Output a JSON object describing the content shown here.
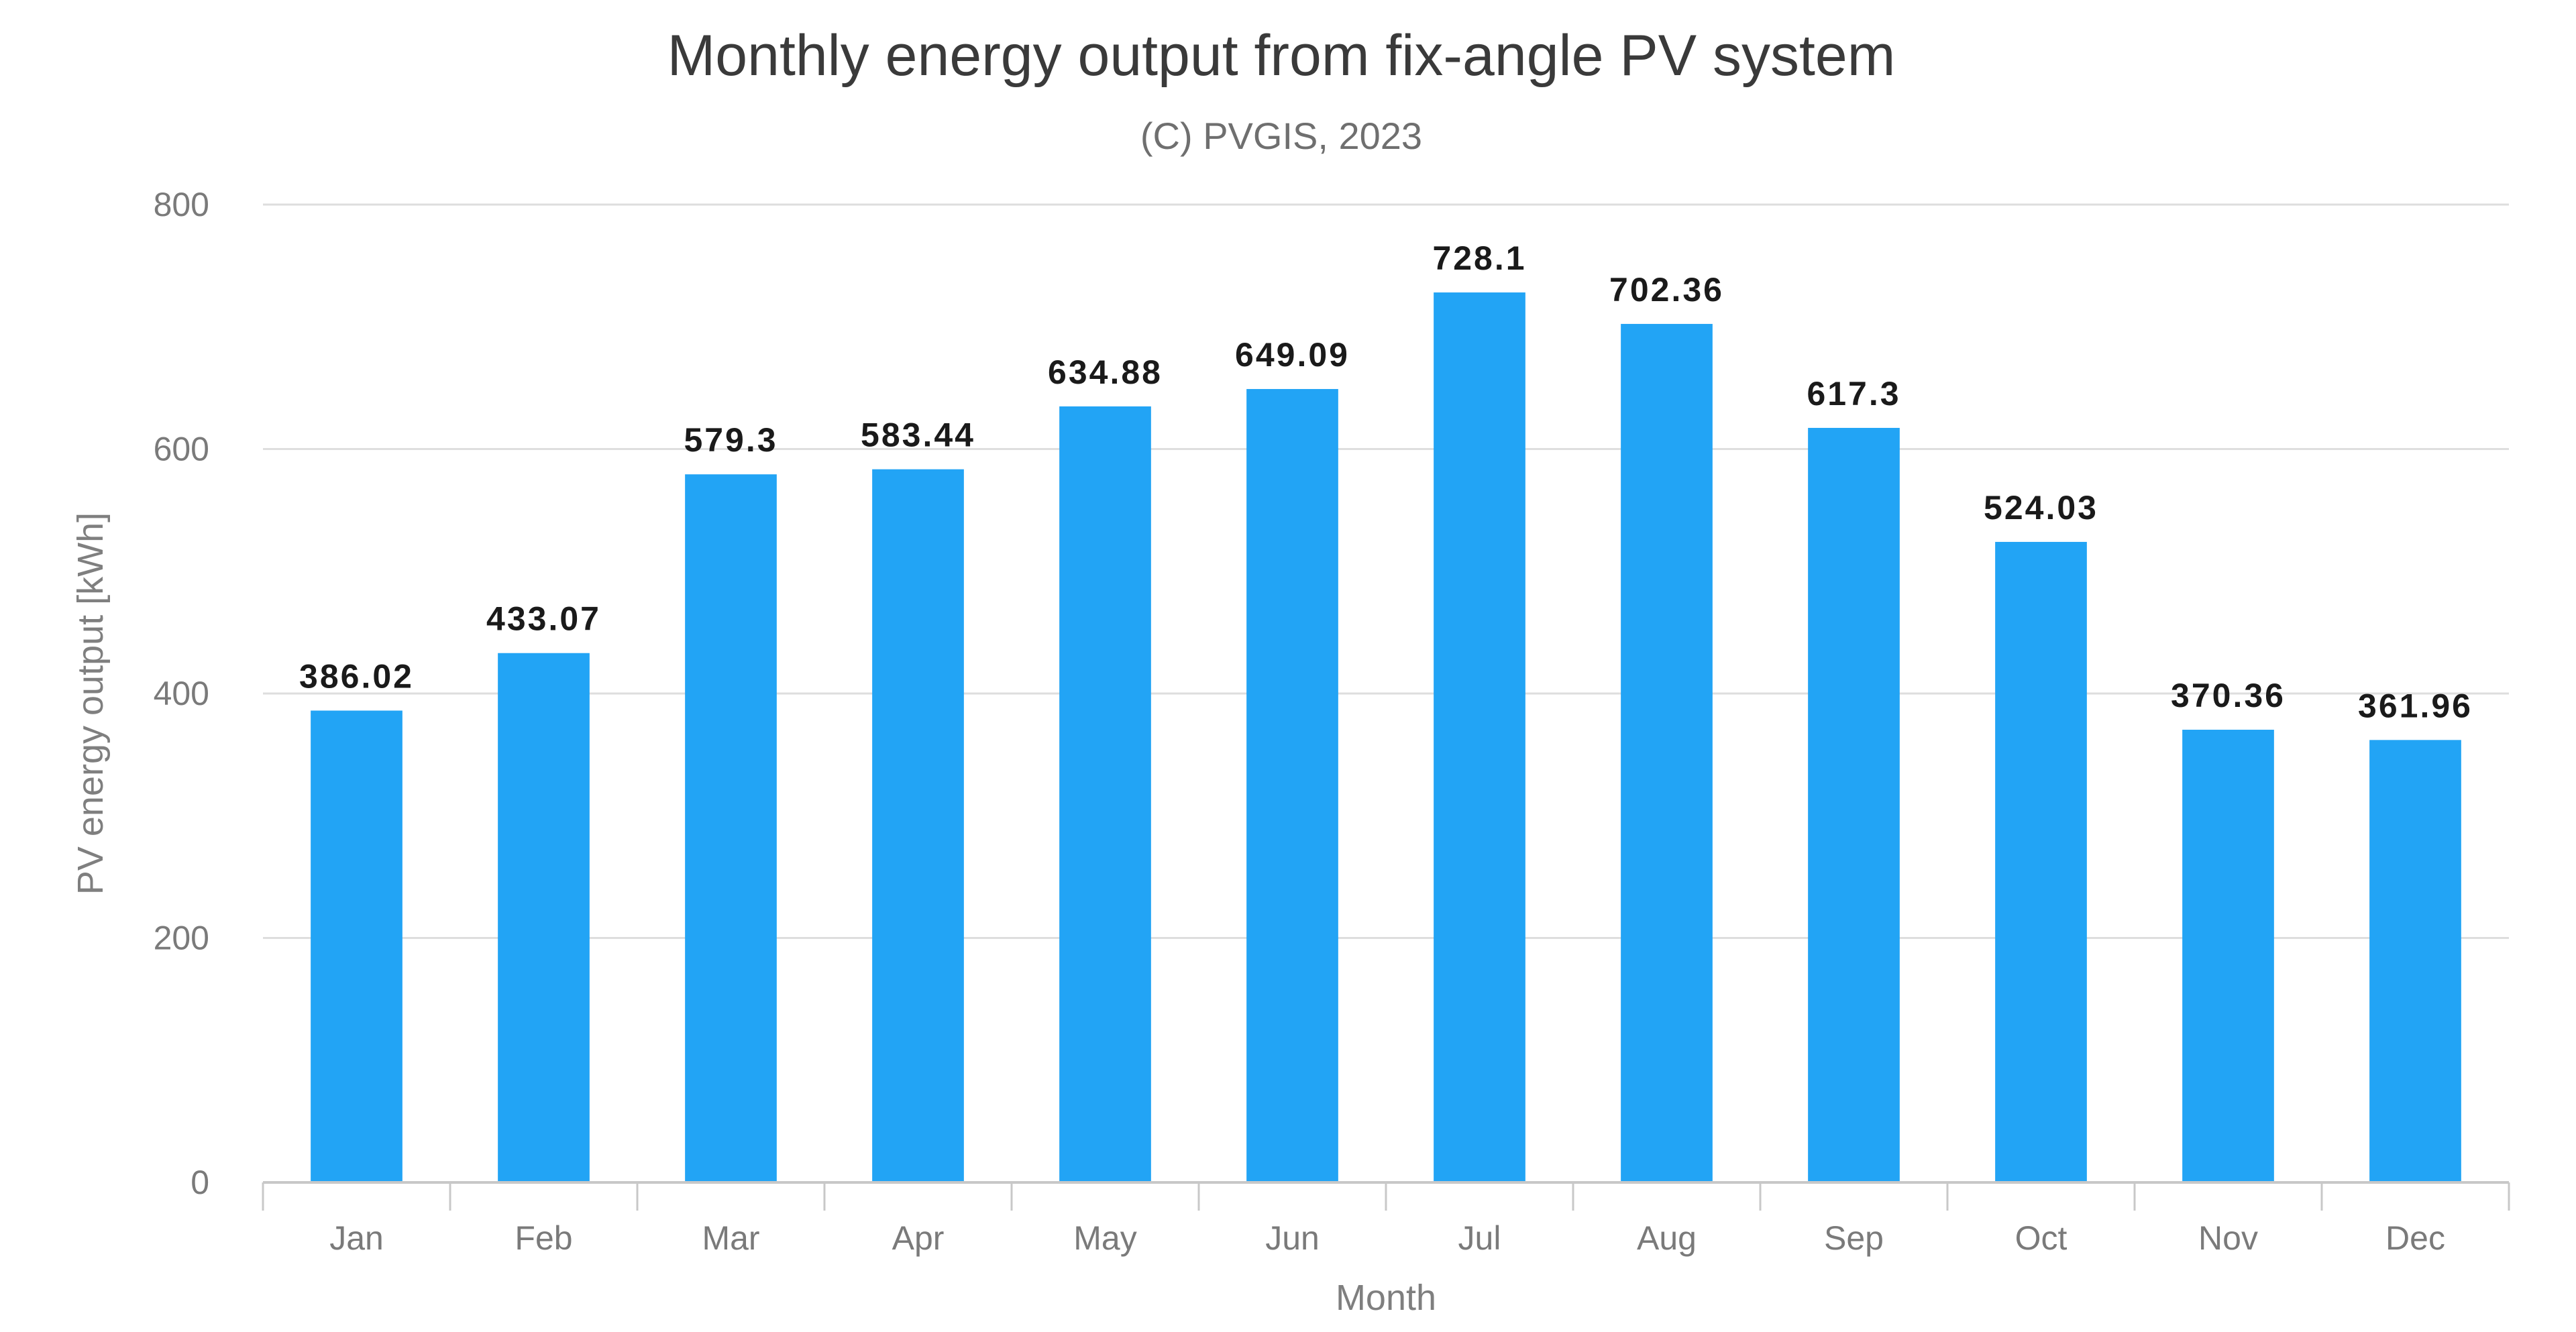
{
  "chart_data": {
    "type": "bar",
    "title": "Monthly energy output from fix-angle PV system",
    "subtitle": "(C) PVGIS, 2023",
    "xlabel": "Month",
    "ylabel": "PV energy output [kWh]",
    "categories": [
      "Jan",
      "Feb",
      "Mar",
      "Apr",
      "May",
      "Jun",
      "Jul",
      "Aug",
      "Sep",
      "Oct",
      "Nov",
      "Dec"
    ],
    "values": [
      386.02,
      433.07,
      579.3,
      583.44,
      634.88,
      649.09,
      728.1,
      702.36,
      617.3,
      524.03,
      370.36,
      361.96
    ],
    "value_labels": [
      "386.02",
      "433.07",
      "579.3",
      "583.44",
      "634.88",
      "649.09",
      "728.1",
      "702.36",
      "617.3",
      "524.03",
      "370.36",
      "361.96"
    ],
    "ylim": [
      0,
      800
    ],
    "yticks": [
      0,
      200,
      400,
      600,
      800
    ],
    "ytick_labels": [
      "0",
      "200",
      "400",
      "600",
      "800"
    ],
    "grid": true,
    "legend": "none",
    "colors": {
      "bar": "#22a4f5",
      "grid": "#dedede",
      "axis": "#c8c8c8"
    }
  }
}
